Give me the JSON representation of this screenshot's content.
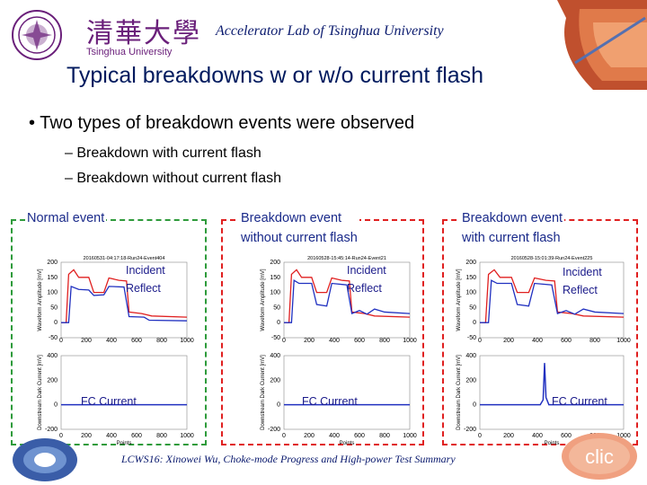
{
  "header": {
    "lab_title": "Accelerator Lab of Tsinghua University",
    "university_name_cn": "清華大學",
    "university_name_en": "Tsinghua University"
  },
  "slide": {
    "title": "Typical breakdowns w or w/o current flash",
    "bullet": "Two types of breakdown events were observed",
    "sub_bullets": [
      "Breakdown with current flash",
      "Breakdown without current flash"
    ]
  },
  "panels": [
    {
      "label": "Normal event",
      "box_color": "#2e9b3b",
      "event_id": "20160531-04:17:18-Run24-Event404",
      "annotations": {
        "incident": "Incident",
        "reflect": "Reflect",
        "fc": "FC Current"
      }
    },
    {
      "label": "Breakdown event\nwithout current flash",
      "box_color": "#e02020",
      "event_id": "20160528-15:45:14-Run24-Event21",
      "annotations": {
        "incident": "Incident",
        "reflect": "Reflect",
        "fc": "FC Current"
      }
    },
    {
      "label": "Breakdown event\nwith current flash",
      "box_color": "#e02020",
      "event_id": "20160528-15:01:39-Run24-Event225",
      "annotations": {
        "incident": "Incident",
        "reflect": "Reflect",
        "fc": "FC Current"
      }
    }
  ],
  "axes": {
    "top_ylabel": "Waveform Amplitude [mV]",
    "bottom_ylabel": "Downstream Dark Current [mV]",
    "xlabel": "Points",
    "top_yticks": [
      "200",
      "150",
      "100",
      "50",
      "0",
      "-50"
    ],
    "bottom_yticks": [
      "400",
      "200",
      "0",
      "-200"
    ],
    "xticks": [
      "0",
      "200",
      "400",
      "600",
      "800",
      "1000"
    ]
  },
  "colors": {
    "incident": "#e02020",
    "reflect": "#2030c0",
    "fc": "#2030c0"
  },
  "footer": "LCWS16: Xinowei Wu, Choke-mode Progress and High-power Test Summary",
  "logos": {
    "left_bottom": "swirl-logo",
    "right_bottom": "clic-logo",
    "right_top": "cavity-image"
  }
}
